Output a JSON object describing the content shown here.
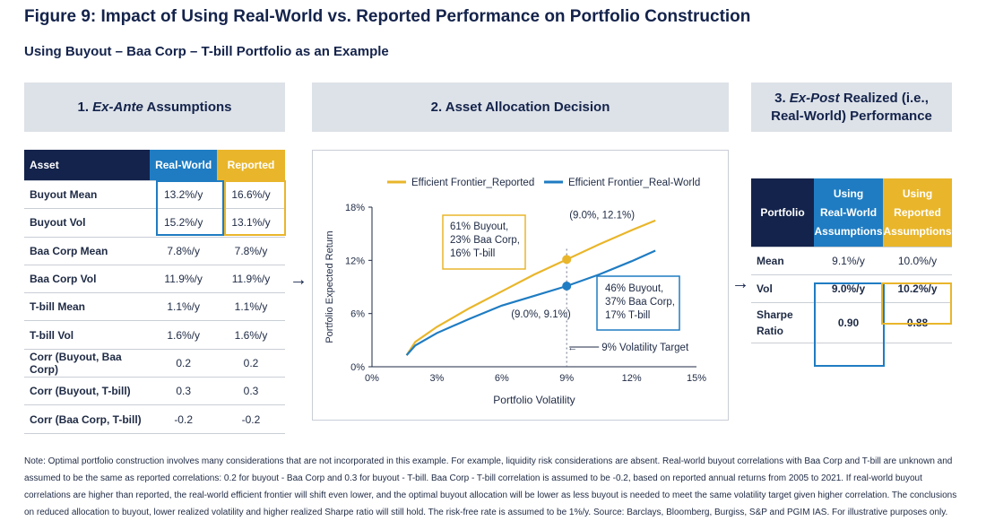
{
  "title": "Figure 9: Impact of Using Real-World vs. Reported Performance on Portfolio Construction",
  "subtitle": "Using Buyout – Baa Corp – T-bill Portfolio as an Example",
  "panels": {
    "p1": {
      "number": "1.",
      "italic": "Ex-Ante",
      "rest": "Assumptions"
    },
    "p2": {
      "title": "2. Asset Allocation Decision"
    },
    "p3": {
      "line1_prefix": "3.",
      "line1_italic": "Ex-Post",
      "line1_rest": "Realized (i.e.,",
      "line2": "Real-World) Performance"
    }
  },
  "assumptions": {
    "headers": [
      "Asset",
      "Real-World",
      "Reported"
    ],
    "rows": [
      [
        "Buyout Mean",
        "13.2%/y",
        "16.6%/y"
      ],
      [
        "Buyout Vol",
        "15.2%/y",
        "13.1%/y"
      ],
      [
        "Baa Corp Mean",
        "7.8%/y",
        "7.8%/y"
      ],
      [
        "Baa Corp Vol",
        "11.9%/y",
        "11.9%/y"
      ],
      [
        "T-bill Mean",
        "1.1%/y",
        "1.1%/y"
      ],
      [
        "T-bill Vol",
        "1.6%/y",
        "1.6%/y"
      ],
      [
        "Corr (Buyout, Baa Corp)",
        "0.2",
        "0.2"
      ],
      [
        "Corr (Buyout, T-bill)",
        "0.3",
        "0.3"
      ],
      [
        "Corr (Baa Corp, T-bill)",
        "-0.2",
        "-0.2"
      ]
    ]
  },
  "performance": {
    "headers": [
      "Portfolio",
      "Using Real-World Assumptions",
      "Using Reported Assumptions"
    ],
    "header_lines": {
      "c1": [
        "Using",
        "Real-World",
        "Assumptions"
      ],
      "c2": [
        "Using",
        "Reported",
        "Assumptions"
      ]
    },
    "rows": [
      {
        "label": [
          "Mean"
        ],
        "rw": "9.1%/y",
        "rep": "10.0%/y"
      },
      {
        "label": [
          "Vol"
        ],
        "rw": "9.0%/y",
        "rep": "10.2%/y"
      },
      {
        "label": [
          "Sharpe",
          "Ratio"
        ],
        "rw": "0.90",
        "rep": "0.88"
      }
    ]
  },
  "arrows": {
    "a1": "→",
    "a2": "→"
  },
  "chart_data": {
    "type": "line",
    "xlabel": "Portfolio Volatility",
    "ylabel": "Portfolio Expected Return",
    "xlim": [
      0,
      15
    ],
    "ylim": [
      0,
      18
    ],
    "x_ticks": [
      0,
      3,
      6,
      9,
      12,
      15
    ],
    "x_tick_labels": [
      "0%",
      "3%",
      "6%",
      "9%",
      "12%",
      "15%"
    ],
    "y_ticks": [
      0,
      6,
      12,
      18
    ],
    "y_tick_labels": [
      "0%",
      "6%",
      "12%",
      "18%"
    ],
    "legend_position": "top",
    "series": [
      {
        "name": "Efficient Frontier_Reported",
        "color": "#e9b62b",
        "x": [
          1.6,
          2.0,
          3.0,
          4.5,
          6.0,
          7.5,
          9.0,
          10.5,
          12.0,
          13.1
        ],
        "y": [
          1.3,
          2.8,
          4.5,
          6.6,
          8.5,
          10.4,
          12.1,
          13.8,
          15.4,
          16.5
        ]
      },
      {
        "name": "Efficient Frontier_Real-World",
        "color": "#1f7cc2",
        "x": [
          1.6,
          2.0,
          3.0,
          4.5,
          6.0,
          7.5,
          9.0,
          10.5,
          12.0,
          13.1
        ],
        "y": [
          1.3,
          2.4,
          3.8,
          5.4,
          6.9,
          8.0,
          9.1,
          10.4,
          11.9,
          13.1
        ]
      }
    ],
    "points": [
      {
        "x": 9.0,
        "y": 12.1,
        "color": "#e9b62b",
        "label": "(9.0%, 12.1%)"
      },
      {
        "x": 9.0,
        "y": 9.1,
        "color": "#1f7cc2",
        "label": "(9.0%, 9.1%)"
      }
    ],
    "callouts": [
      {
        "lines": [
          "61% Buyout,",
          "23% Baa Corp,",
          "16% T-bill"
        ],
        "color": "#e9b62b"
      },
      {
        "lines": [
          "46% Buyout,",
          "37% Baa Corp,",
          "17% T-bill"
        ],
        "color": "#1f7cc2"
      }
    ],
    "vline": {
      "x": 9.0,
      "label": "9% Volatility Target"
    }
  },
  "note": "Note: Optimal portfolio construction involves many considerations that are not incorporated in this example. For example, liquidity risk considerations are absent. Real-world buyout correlations with Baa Corp and T-bill are unknown and assumed to be the same as reported correlations: 0.2 for buyout - Baa Corp and 0.3 for buyout - T-bill. Baa Corp - T-bill correlation is assumed to be -0.2, based on reported annual returns from 2005 to 2021. If real-world buyout correlations are higher than reported, the real-world efficient frontier will shift even lower, and the optimal buyout allocation will be lower as less buyout is needed to meet the same volatility target given higher correlation. The conclusions on reduced allocation to buyout, lower realized volatility and higher realized Sharpe ratio will still hold. The risk-free rate is assumed to be 1%/y. Source: Barclays, Bloomberg, Burgiss, S&P and PGIM IAS. For illustrative purposes only."
}
